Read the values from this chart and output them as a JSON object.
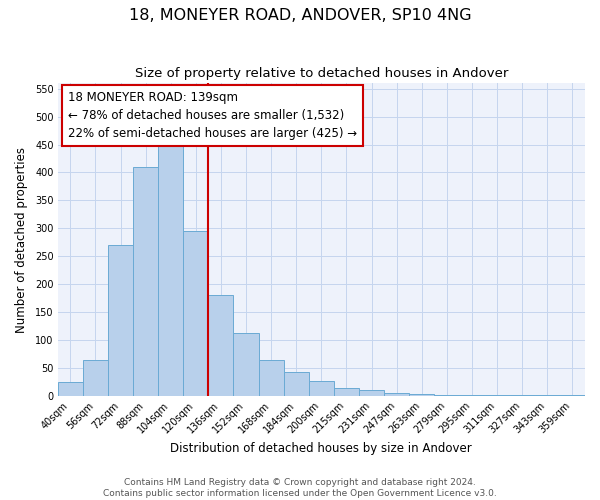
{
  "title": "18, MONEYER ROAD, ANDOVER, SP10 4NG",
  "subtitle": "Size of property relative to detached houses in Andover",
  "xlabel": "Distribution of detached houses by size in Andover",
  "ylabel": "Number of detached properties",
  "bar_labels": [
    "40sqm",
    "56sqm",
    "72sqm",
    "88sqm",
    "104sqm",
    "120sqm",
    "136sqm",
    "152sqm",
    "168sqm",
    "184sqm",
    "200sqm",
    "215sqm",
    "231sqm",
    "247sqm",
    "263sqm",
    "279sqm",
    "295sqm",
    "311sqm",
    "327sqm",
    "343sqm",
    "359sqm"
  ],
  "bar_values": [
    25,
    65,
    270,
    410,
    455,
    295,
    180,
    113,
    65,
    43,
    27,
    15,
    10,
    5,
    3,
    2,
    1,
    1,
    1,
    1,
    1
  ],
  "bar_color": "#b8d0eb",
  "bar_edge_color": "#6aaad4",
  "bg_color": "#eef2fb",
  "grid_color": "#c5d5ee",
  "vline_color": "#cc0000",
  "annotation_title": "18 MONEYER ROAD: 139sqm",
  "annotation_line1": "← 78% of detached houses are smaller (1,532)",
  "annotation_line2": "22% of semi-detached houses are larger (425) →",
  "annotation_box_color": "#cc0000",
  "footer_line1": "Contains HM Land Registry data © Crown copyright and database right 2024.",
  "footer_line2": "Contains public sector information licensed under the Open Government Licence v3.0.",
  "ylim": [
    0,
    560
  ],
  "yticks": [
    0,
    50,
    100,
    150,
    200,
    250,
    300,
    350,
    400,
    450,
    500,
    550
  ],
  "title_fontsize": 11.5,
  "subtitle_fontsize": 9.5,
  "axis_label_fontsize": 8.5,
  "tick_fontsize": 7,
  "annotation_fontsize": 8.5,
  "footer_fontsize": 6.5
}
